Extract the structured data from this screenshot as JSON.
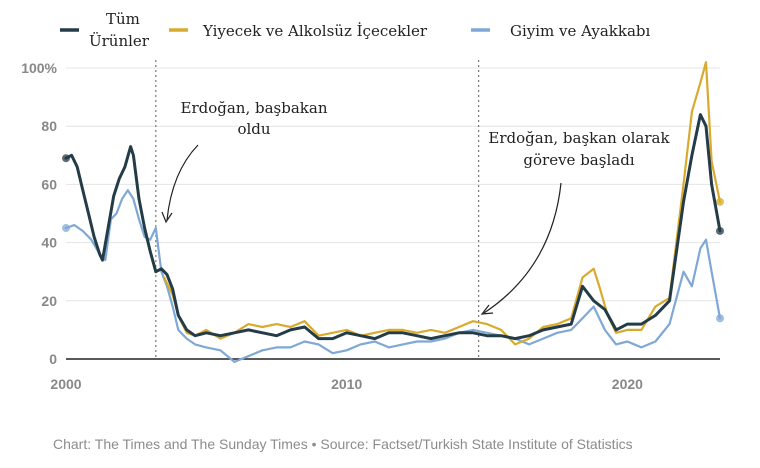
{
  "source": "Chart: The Times and The Sunday Times • Source: Factset/Turkish State Institute of Statistics",
  "legend": {
    "all": [
      "Tüm",
      "Ürünler"
    ],
    "food": "Yiyecek ve Alkolsüz İçecekler",
    "clothing": "Giyim ve Ayakkabı"
  },
  "annotations": {
    "pm": [
      "Erdoğan, başbakan",
      "oldu"
    ],
    "president": [
      "Erdoğan, başkan olarak",
      "göreve başladı"
    ]
  },
  "chart_data": {
    "type": "line",
    "xlim": [
      2000,
      2023.3
    ],
    "ylim": [
      0,
      100
    ],
    "x_ticks": [
      2000,
      2010,
      2020
    ],
    "x_tick_labels": [
      "2000",
      "2010",
      "2020"
    ],
    "y_ticks": [
      0,
      20,
      40,
      60,
      80,
      100
    ],
    "y_tick_labels": [
      "0",
      "20",
      "40",
      "60",
      "80",
      "100%"
    ],
    "grid": true,
    "legend_position": "top",
    "event_lines": [
      2003.2,
      2014.7
    ],
    "colors": {
      "all": "#243c47",
      "food": "#d8aa2e",
      "clothing": "#7fa8d6"
    },
    "series": [
      {
        "key": "all",
        "name": "Tüm Ürünler",
        "points": [
          [
            2000.0,
            69
          ],
          [
            2000.2,
            70
          ],
          [
            2000.4,
            66
          ],
          [
            2000.6,
            58
          ],
          [
            2000.8,
            50
          ],
          [
            2001.0,
            42
          ],
          [
            2001.2,
            36
          ],
          [
            2001.3,
            34
          ],
          [
            2001.5,
            45
          ],
          [
            2001.7,
            56
          ],
          [
            2001.9,
            62
          ],
          [
            2002.1,
            66
          ],
          [
            2002.3,
            73
          ],
          [
            2002.4,
            70
          ],
          [
            2002.6,
            55
          ],
          [
            2002.8,
            45
          ],
          [
            2003.0,
            37
          ],
          [
            2003.2,
            30
          ],
          [
            2003.4,
            31
          ],
          [
            2003.6,
            29
          ],
          [
            2003.8,
            24
          ],
          [
            2004.0,
            15
          ],
          [
            2004.3,
            10
          ],
          [
            2004.6,
            8
          ],
          [
            2005.0,
            9
          ],
          [
            2005.5,
            8
          ],
          [
            2006.0,
            9
          ],
          [
            2006.5,
            10
          ],
          [
            2007.0,
            9
          ],
          [
            2007.5,
            8
          ],
          [
            2008.0,
            10
          ],
          [
            2008.5,
            11
          ],
          [
            2009.0,
            7
          ],
          [
            2009.5,
            7
          ],
          [
            2010.0,
            9
          ],
          [
            2010.5,
            8
          ],
          [
            2011.0,
            7
          ],
          [
            2011.5,
            9
          ],
          [
            2012.0,
            9
          ],
          [
            2012.5,
            8
          ],
          [
            2013.0,
            7
          ],
          [
            2013.5,
            8
          ],
          [
            2014.0,
            9
          ],
          [
            2014.5,
            9
          ],
          [
            2015.0,
            8
          ],
          [
            2015.5,
            8
          ],
          [
            2016.0,
            7
          ],
          [
            2016.5,
            8
          ],
          [
            2017.0,
            10
          ],
          [
            2017.5,
            11
          ],
          [
            2018.0,
            12
          ],
          [
            2018.4,
            25
          ],
          [
            2018.8,
            20
          ],
          [
            2019.2,
            17
          ],
          [
            2019.6,
            10
          ],
          [
            2020.0,
            12
          ],
          [
            2020.5,
            12
          ],
          [
            2021.0,
            15
          ],
          [
            2021.5,
            20
          ],
          [
            2022.0,
            54
          ],
          [
            2022.3,
            70
          ],
          [
            2022.6,
            84
          ],
          [
            2022.8,
            80
          ],
          [
            2023.0,
            60
          ],
          [
            2023.3,
            44
          ]
        ]
      },
      {
        "key": "food",
        "name": "Yiyecek ve Alkolsüz İçecekler",
        "points": [
          [
            2003.5,
            28
          ],
          [
            2003.8,
            22
          ],
          [
            2004.0,
            15
          ],
          [
            2004.3,
            9
          ],
          [
            2004.6,
            8
          ],
          [
            2005.0,
            10
          ],
          [
            2005.5,
            7
          ],
          [
            2006.0,
            9
          ],
          [
            2006.5,
            12
          ],
          [
            2007.0,
            11
          ],
          [
            2007.5,
            12
          ],
          [
            2008.0,
            11
          ],
          [
            2008.5,
            13
          ],
          [
            2009.0,
            8
          ],
          [
            2009.5,
            9
          ],
          [
            2010.0,
            10
          ],
          [
            2010.5,
            8
          ],
          [
            2011.0,
            9
          ],
          [
            2011.5,
            10
          ],
          [
            2012.0,
            10
          ],
          [
            2012.5,
            9
          ],
          [
            2013.0,
            10
          ],
          [
            2013.5,
            9
          ],
          [
            2014.0,
            11
          ],
          [
            2014.5,
            13
          ],
          [
            2015.0,
            12
          ],
          [
            2015.5,
            10
          ],
          [
            2016.0,
            5
          ],
          [
            2016.5,
            7
          ],
          [
            2017.0,
            11
          ],
          [
            2017.5,
            12
          ],
          [
            2018.0,
            14
          ],
          [
            2018.4,
            28
          ],
          [
            2018.8,
            31
          ],
          [
            2019.0,
            25
          ],
          [
            2019.3,
            15
          ],
          [
            2019.6,
            9
          ],
          [
            2020.0,
            10
          ],
          [
            2020.5,
            10
          ],
          [
            2021.0,
            18
          ],
          [
            2021.5,
            21
          ],
          [
            2022.0,
            60
          ],
          [
            2022.3,
            85
          ],
          [
            2022.6,
            95
          ],
          [
            2022.8,
            102
          ],
          [
            2023.0,
            68
          ],
          [
            2023.3,
            54
          ]
        ]
      },
      {
        "key": "clothing",
        "name": "Giyim ve Ayakkabı",
        "points": [
          [
            2000.0,
            45
          ],
          [
            2000.3,
            46
          ],
          [
            2000.6,
            44
          ],
          [
            2000.9,
            41
          ],
          [
            2001.2,
            36
          ],
          [
            2001.4,
            34
          ],
          [
            2001.6,
            48
          ],
          [
            2001.8,
            50
          ],
          [
            2002.0,
            55
          ],
          [
            2002.2,
            58
          ],
          [
            2002.4,
            55
          ],
          [
            2002.6,
            48
          ],
          [
            2002.8,
            42
          ],
          [
            2003.0,
            41
          ],
          [
            2003.2,
            45
          ],
          [
            2003.4,
            30
          ],
          [
            2003.6,
            25
          ],
          [
            2003.8,
            18
          ],
          [
            2004.0,
            10
          ],
          [
            2004.3,
            7
          ],
          [
            2004.6,
            5
          ],
          [
            2005.0,
            4
          ],
          [
            2005.5,
            3
          ],
          [
            2006.0,
            -1
          ],
          [
            2006.5,
            1
          ],
          [
            2007.0,
            3
          ],
          [
            2007.5,
            4
          ],
          [
            2008.0,
            4
          ],
          [
            2008.5,
            6
          ],
          [
            2009.0,
            5
          ],
          [
            2009.5,
            2
          ],
          [
            2010.0,
            3
          ],
          [
            2010.5,
            5
          ],
          [
            2011.0,
            6
          ],
          [
            2011.5,
            4
          ],
          [
            2012.0,
            5
          ],
          [
            2012.5,
            6
          ],
          [
            2013.0,
            6
          ],
          [
            2013.5,
            7
          ],
          [
            2014.0,
            9
          ],
          [
            2014.5,
            10
          ],
          [
            2015.0,
            9
          ],
          [
            2015.5,
            8
          ],
          [
            2016.0,
            7
          ],
          [
            2016.5,
            5
          ],
          [
            2017.0,
            7
          ],
          [
            2017.5,
            9
          ],
          [
            2018.0,
            10
          ],
          [
            2018.4,
            14
          ],
          [
            2018.8,
            18
          ],
          [
            2019.2,
            10
          ],
          [
            2019.6,
            5
          ],
          [
            2020.0,
            6
          ],
          [
            2020.5,
            4
          ],
          [
            2021.0,
            6
          ],
          [
            2021.5,
            12
          ],
          [
            2022.0,
            30
          ],
          [
            2022.3,
            25
          ],
          [
            2022.6,
            38
          ],
          [
            2022.8,
            41
          ],
          [
            2023.0,
            30
          ],
          [
            2023.3,
            14
          ]
        ]
      }
    ]
  }
}
